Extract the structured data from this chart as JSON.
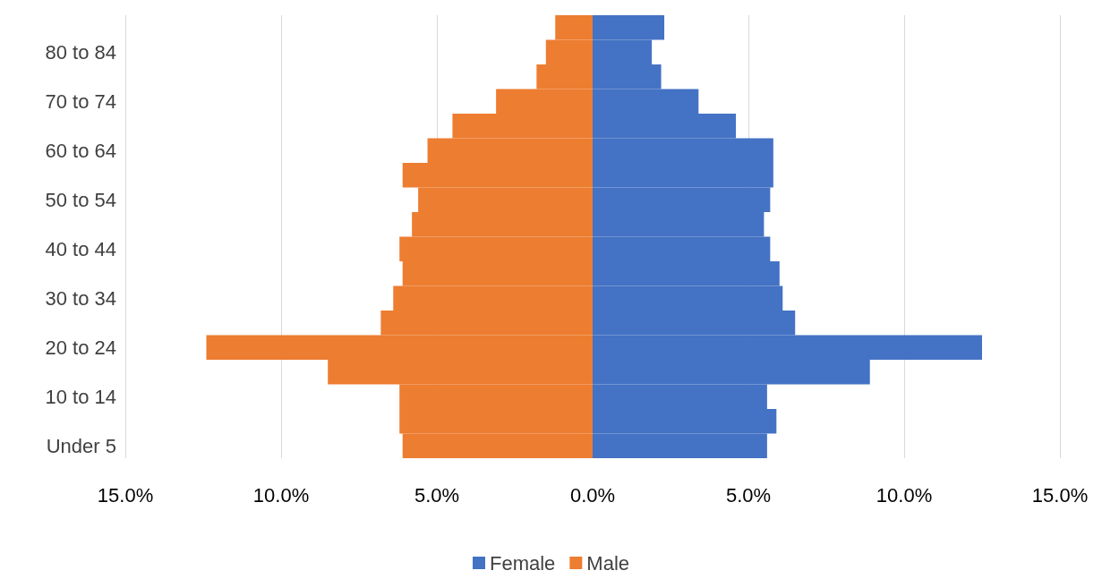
{
  "chart_data": {
    "type": "bar",
    "orientation": "horizontal",
    "categories": [
      null,
      "80 to 84",
      null,
      "70 to 74",
      null,
      "60 to 64",
      null,
      "50 to 54",
      null,
      "40 to 44",
      null,
      "30 to 34",
      null,
      "20 to 24",
      null,
      "10 to 14",
      null,
      "Under 5"
    ],
    "series": [
      {
        "name": "Female",
        "color": "#4472c4",
        "values": [
          2.3,
          1.9,
          2.2,
          3.4,
          4.6,
          5.8,
          5.8,
          5.7,
          5.5,
          5.7,
          6.0,
          6.1,
          6.5,
          12.5,
          8.9,
          5.6,
          5.9,
          5.6
        ]
      },
      {
        "name": "Male",
        "color": "#ed7d31",
        "values": [
          -1.2,
          -1.5,
          -1.8,
          -3.1,
          -4.5,
          -5.3,
          -6.1,
          -5.6,
          -5.8,
          -6.2,
          -6.1,
          -6.4,
          -6.8,
          -12.4,
          -8.5,
          -6.2,
          -6.2,
          -6.1
        ]
      }
    ],
    "xlim": [
      -15,
      15
    ],
    "xticks": [
      {
        "value": -15,
        "label": "15.0%"
      },
      {
        "value": -10,
        "label": "10.0%"
      },
      {
        "value": -5,
        "label": "5.0%"
      },
      {
        "value": 0,
        "label": "0.0%"
      },
      {
        "value": 5,
        "label": "5.0%"
      },
      {
        "value": 10,
        "label": "10.0%"
      },
      {
        "value": 15,
        "label": "15.0%"
      }
    ],
    "grid": "x",
    "legend": "bottom",
    "stacked": true
  }
}
